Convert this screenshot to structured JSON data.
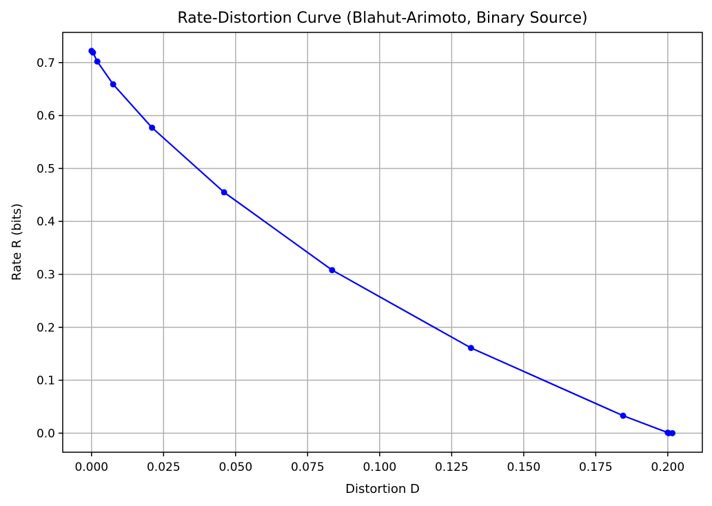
{
  "chart_data": {
    "type": "line",
    "title": "Rate-Distortion Curve (Blahut-Arimoto, Binary Source)",
    "xlabel": "Distortion D",
    "ylabel": "Rate R (bits)",
    "xlim": [
      -0.01,
      0.212
    ],
    "ylim": [
      -0.036,
      0.757
    ],
    "xticks": [
      0.0,
      0.025,
      0.05,
      0.075,
      0.1,
      0.125,
      0.15,
      0.175,
      0.2
    ],
    "xtick_labels": [
      "0.000",
      "0.025",
      "0.050",
      "0.075",
      "0.100",
      "0.125",
      "0.150",
      "0.175",
      "0.200"
    ],
    "yticks": [
      0.0,
      0.1,
      0.2,
      0.3,
      0.4,
      0.5,
      0.6,
      0.7
    ],
    "ytick_labels": [
      "0.0",
      "0.1",
      "0.2",
      "0.3",
      "0.4",
      "0.5",
      "0.6",
      "0.7"
    ],
    "grid": true,
    "series": [
      {
        "color": "#0000ff",
        "marker": "circle",
        "x": [
          0.0,
          0.0005,
          0.002,
          0.0075,
          0.021,
          0.046,
          0.0835,
          0.1317,
          0.1845,
          0.2,
          0.2003,
          0.2016
        ],
        "y": [
          0.722,
          0.719,
          0.702,
          0.659,
          0.577,
          0.455,
          0.308,
          0.161,
          0.033,
          0.001,
          0.0,
          0.0
        ]
      }
    ]
  }
}
